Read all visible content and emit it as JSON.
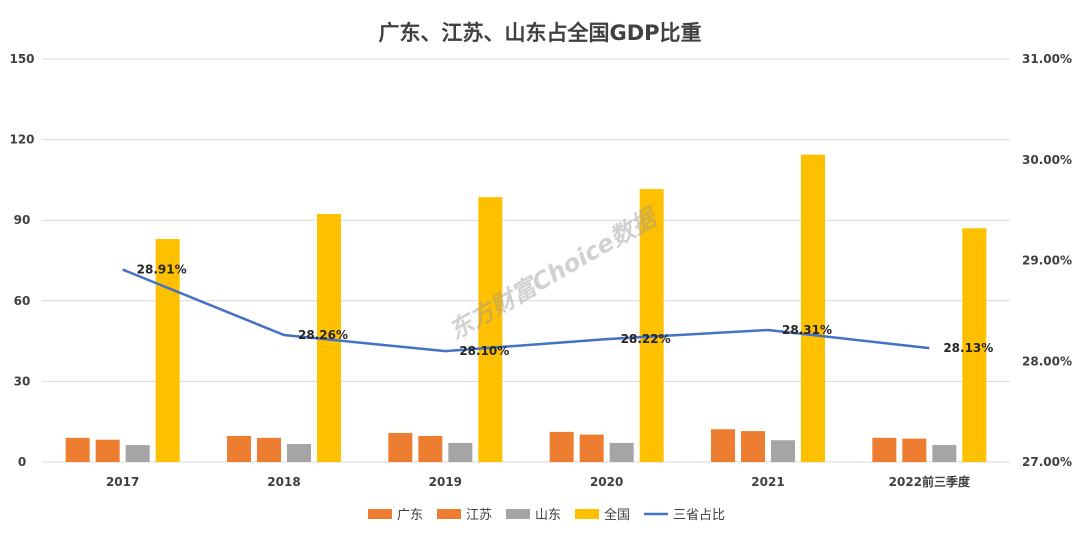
{
  "chart_data": {
    "type": "bar",
    "title": "广东、江苏、山东占全国GDP比重",
    "categories": [
      "2017",
      "2018",
      "2019",
      "2020",
      "2021",
      "2022前三季度"
    ],
    "series": [
      {
        "name": "广东",
        "type": "bar",
        "axis": "left",
        "color": "#ED7D31",
        "values": [
          9.0,
          9.7,
          10.8,
          11.2,
          12.2,
          9.0
        ]
      },
      {
        "name": "江苏",
        "type": "bar",
        "axis": "left",
        "color": "#ED7D31",
        "values": [
          8.3,
          9.0,
          9.7,
          10.2,
          11.5,
          8.7
        ]
      },
      {
        "name": "山东",
        "type": "bar",
        "axis": "left",
        "color": "#A5A5A5",
        "values": [
          6.3,
          6.7,
          7.1,
          7.1,
          8.1,
          6.3
        ]
      },
      {
        "name": "全国",
        "type": "bar",
        "axis": "left",
        "color": "#FFC000",
        "values": [
          83.0,
          92.3,
          98.6,
          101.6,
          114.4,
          87.0
        ]
      },
      {
        "name": "三省占比",
        "type": "line",
        "axis": "right",
        "color": "#4472C4",
        "values": [
          28.91,
          28.26,
          28.1,
          28.22,
          28.31,
          28.13
        ],
        "labels": [
          "28.91%",
          "28.26%",
          "28.10%",
          "28.22%",
          "28.31%",
          "28.13%"
        ]
      }
    ],
    "y_left": {
      "range": [
        0,
        150
      ],
      "ticks": [
        "0",
        "30",
        "60",
        "90",
        "120",
        "150"
      ]
    },
    "y_right": {
      "range": [
        27,
        31
      ],
      "ticks": [
        "27.00%",
        "28.00%",
        "29.00%",
        "30.00%",
        "31.00%"
      ]
    },
    "grid": true,
    "legend_position": "bottom",
    "watermark": "东方财富Choice数据"
  }
}
